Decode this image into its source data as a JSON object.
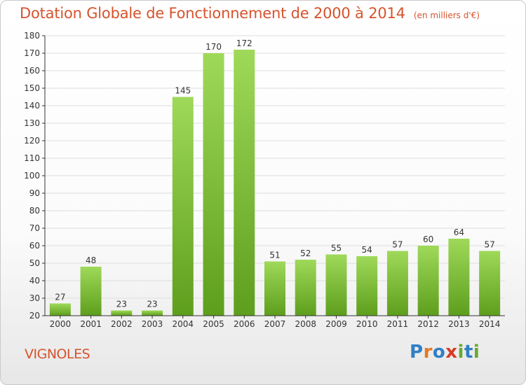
{
  "header": {
    "title": "Dotation Globale de Fonctionnement de 2000 à 2014",
    "subtitle": "(en milliers d'€)"
  },
  "footer": {
    "commune": "VIGNOLES",
    "logo_text": "Proxiti",
    "logo_colors": [
      "#2f7fc5",
      "#e27a22",
      "#2f7fc5",
      "#d63a26",
      "#68a82e",
      "#2f7fc5",
      "#68a82e"
    ]
  },
  "colors": {
    "bar_top": "#9fd959",
    "bar_bottom": "#5e9e1d",
    "title": "#d6532c",
    "grid": "#dddddd",
    "axis": "#333333"
  },
  "chart_data": {
    "type": "bar",
    "categories": [
      "2000",
      "2001",
      "2002",
      "2003",
      "2004",
      "2005",
      "2006",
      "2007",
      "2008",
      "2009",
      "2010",
      "2011",
      "2012",
      "2013",
      "2014"
    ],
    "values": [
      27,
      48,
      23,
      23,
      145,
      170,
      172,
      51,
      52,
      55,
      54,
      57,
      60,
      64,
      57
    ],
    "title": "Dotation Globale de Fonctionnement de 2000 à 2014",
    "ylabel": "",
    "xlabel": "",
    "ylim": [
      20,
      180
    ],
    "yticks": [
      20,
      30,
      40,
      50,
      60,
      70,
      80,
      90,
      100,
      110,
      120,
      130,
      140,
      150,
      160,
      170,
      180
    ],
    "grid": true,
    "legend": "none"
  }
}
